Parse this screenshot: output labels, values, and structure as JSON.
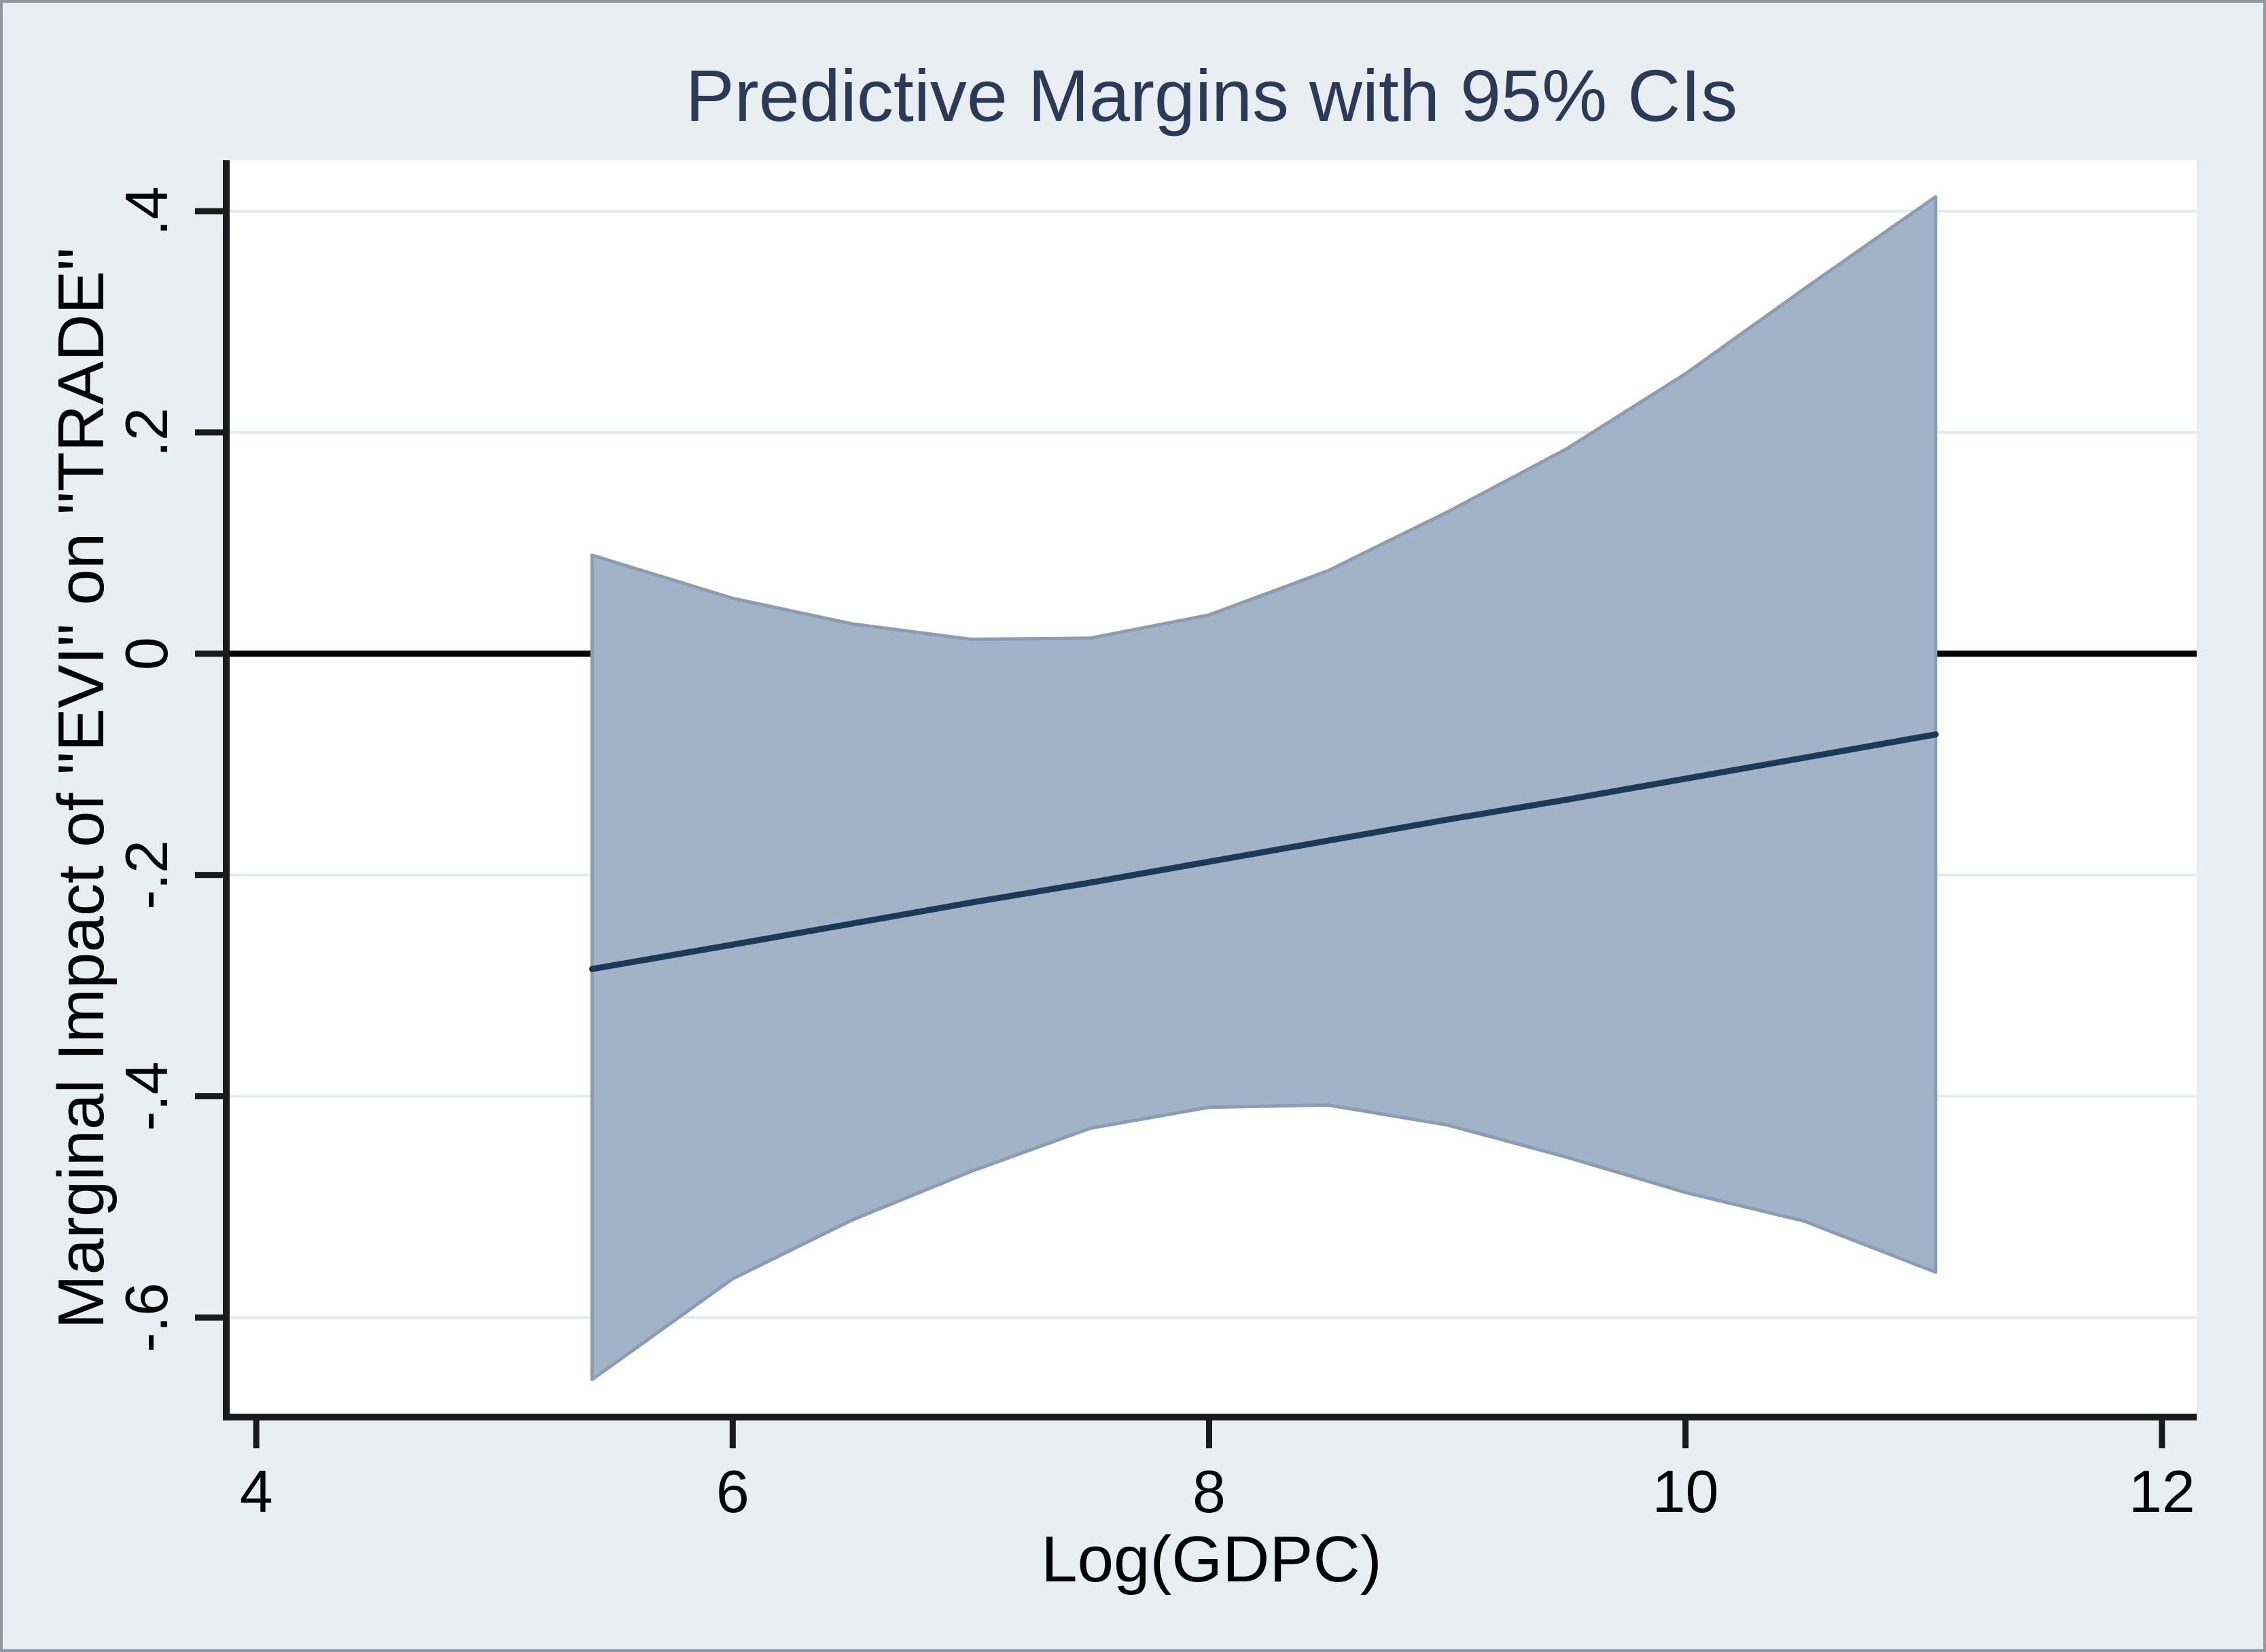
{
  "figure": {
    "background_color": "#e9eef2",
    "plot_background": "#ffffff",
    "border_color": "#8f99a1"
  },
  "chart_data": {
    "type": "area",
    "title": "Predictive Margins with 95% CIs",
    "xlabel": "Log(GDPC)",
    "ylabel": "Marginal Impact of \"EVI\" on \"TRADE\"",
    "legend": "none",
    "grid": "horizontal",
    "xlim": [
      3.874,
      12.146
    ],
    "ylim": [
      -0.69,
      0.446
    ],
    "x_ticks": [
      {
        "value": 4,
        "label": "4"
      },
      {
        "value": 6,
        "label": "6"
      },
      {
        "value": 8,
        "label": "8"
      },
      {
        "value": 10,
        "label": "10"
      },
      {
        "value": 12,
        "label": "12"
      }
    ],
    "y_ticks": [
      {
        "value": 0.4,
        "label": ".4"
      },
      {
        "value": 0.2,
        "label": ".2"
      },
      {
        "value": 0,
        "label": "0"
      },
      {
        "value": -0.2,
        "label": "-.2"
      },
      {
        "value": -0.4,
        "label": "-.4"
      },
      {
        "value": -0.6,
        "label": "-.6"
      }
    ],
    "reference_line_y": 0,
    "colors": {
      "band": "#a2b3c7",
      "band_edge": "#8a9db2",
      "line": "#1b3a5a",
      "grid": "#e3ebf1",
      "axis": "#1a1a1a",
      "reference": "#000000",
      "tick_text": "#000000",
      "title_text": "#2b3a57"
    },
    "x": [
      5.41,
      6.0,
      6.5,
      7.0,
      7.5,
      8.0,
      8.5,
      9.0,
      9.5,
      10.0,
      10.5,
      11.05
    ],
    "series": [
      {
        "name": "Predictive margin",
        "type": "line",
        "values": [
          -0.285,
          -0.263,
          -0.244,
          -0.225,
          -0.207,
          -0.188,
          -0.169,
          -0.15,
          -0.132,
          -0.113,
          -0.094,
          -0.073
        ]
      },
      {
        "name": "95% CI upper bound",
        "type": "band-upper",
        "values": [
          0.089,
          0.05,
          0.027,
          0.013,
          0.014,
          0.035,
          0.075,
          0.128,
          0.185,
          0.253,
          0.33,
          0.413
        ]
      },
      {
        "name": "95% CI lower bound",
        "type": "band-lower",
        "values": [
          -0.656,
          -0.565,
          -0.512,
          -0.468,
          -0.429,
          -0.41,
          -0.408,
          -0.426,
          -0.455,
          -0.487,
          -0.513,
          -0.559
        ]
      }
    ]
  }
}
